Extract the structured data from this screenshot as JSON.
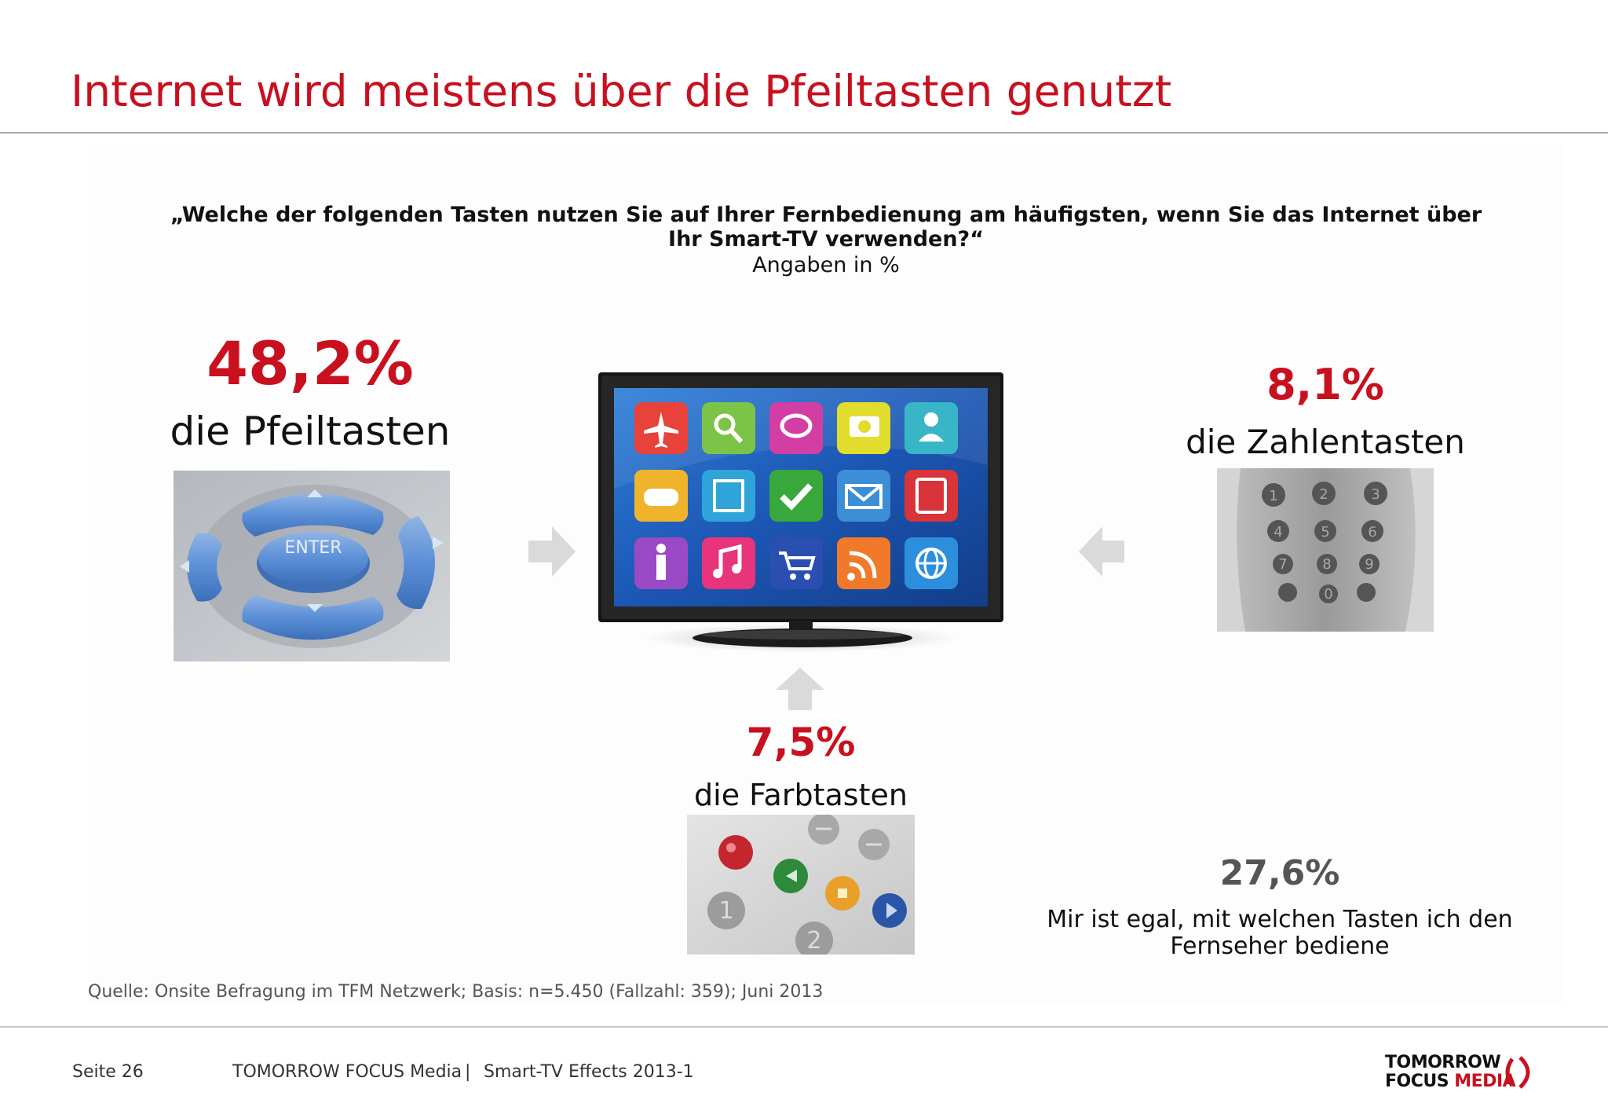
{
  "slide": {
    "title": "Internet wird meistens über die Pfeiltasten genutzt",
    "question": "„Welche der folgenden Tasten nutzen Sie auf Ihrer Fernbedienung am häufigsten, wenn Sie das Internet über Ihr Smart-TV verwenden?“",
    "subtitle": "Angaben in %",
    "source": "Quelle: Onsite Befragung im TFM Netzwerk; Basis: n=5.450 (Fallzahl: 359); Juni 2013"
  },
  "results": {
    "pfeiltasten": {
      "value": "48,2%",
      "label": "die Pfeiltasten"
    },
    "zahlentasten": {
      "value": "8,1%",
      "label": "die Zahlentasten"
    },
    "farbtasten": {
      "value": "7,5%",
      "label": "die Farbtasten"
    },
    "egal": {
      "value": "27,6%",
      "label": "Mir ist egal, mit welchen Tasten ich den Fernseher bediene"
    }
  },
  "remote_images": {
    "arrow_keys_label": "ENTER",
    "number_keys": [
      "1",
      "2",
      "3",
      "4",
      "5",
      "6",
      "7",
      "8",
      "9",
      "0"
    ],
    "color_keys_numbers": [
      "1",
      "2"
    ]
  },
  "tv_apps": [
    "airplane-icon",
    "search-icon",
    "chat-icon",
    "camera-icon",
    "contact-icon",
    "gamepad-icon",
    "film-icon",
    "check-icon",
    "mail-icon",
    "calculator-icon",
    "person-icon",
    "music-icon",
    "cart-icon",
    "rss-icon",
    "globe-icon"
  ],
  "footer": {
    "page": "Seite 26",
    "company": "TOMORROW FOCUS Media",
    "separator": "|",
    "report": "Smart-TV Effects 2013-1"
  },
  "logo": {
    "line1": "TOMORROW",
    "line2a": "FOCUS",
    "line2b": "MEDIA"
  },
  "colors": {
    "accent": "#c8101e",
    "muted": "#555555",
    "arrow": "#dadada"
  }
}
